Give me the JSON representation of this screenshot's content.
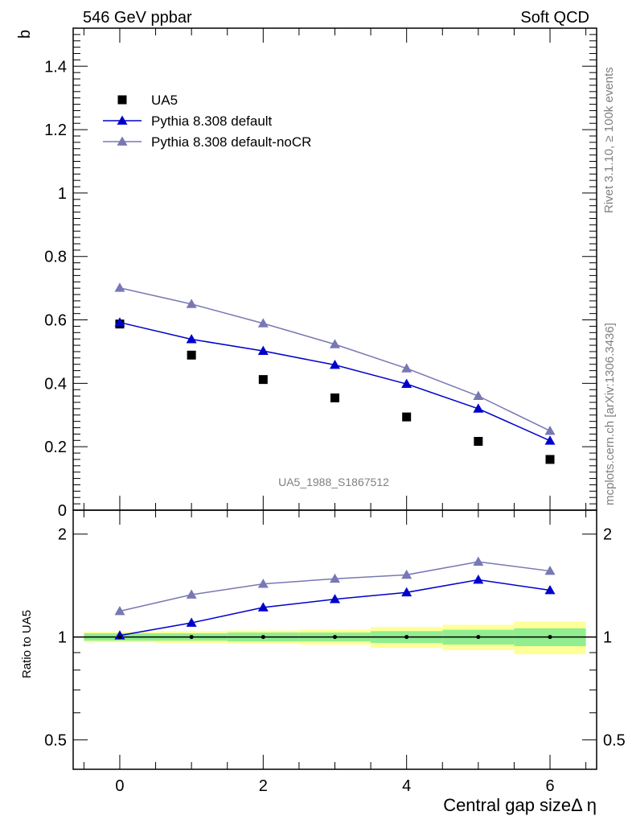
{
  "header": {
    "left": "546 GeV ppbar",
    "right": "Soft QCD"
  },
  "side_text": {
    "rivet": "Rivet 3.1.10, ≥ 100k events",
    "mcplots": "mcplots.cern.ch [arXiv:1306.3436]"
  },
  "analysis_id": "UA5_1988_S1867512",
  "chart_data": [
    {
      "type": "scatter",
      "panel": "main",
      "ylabel": "b",
      "ylim": [
        0,
        1.52
      ],
      "xlim": [
        -0.65,
        6.65
      ],
      "yticks": [
        0,
        0.2,
        0.4,
        0.6,
        0.8,
        1,
        1.2,
        1.4
      ],
      "ytick_labels": [
        "0",
        "0.2",
        "0.4",
        "0.6",
        "0.8",
        "1",
        "1.2",
        "1.4"
      ],
      "x": [
        0,
        1,
        2,
        3,
        4,
        5,
        6
      ],
      "legend_position": "top-left",
      "series": [
        {
          "name": "UA5",
          "marker": "square",
          "color": "#000000",
          "line": false,
          "values": [
            0.587,
            0.489,
            0.412,
            0.354,
            0.294,
            0.217,
            0.16
          ]
        },
        {
          "name": "Pythia 8.308 default",
          "marker": "triangle",
          "color": "#0000cc",
          "line": true,
          "values": [
            0.592,
            0.539,
            0.502,
            0.458,
            0.398,
            0.32,
            0.219
          ]
        },
        {
          "name": "Pythia 8.308 default-noCR",
          "marker": "triangle",
          "color": "#7878b4",
          "line": true,
          "values": [
            0.701,
            0.65,
            0.589,
            0.523,
            0.447,
            0.36,
            0.25
          ]
        }
      ]
    },
    {
      "type": "line",
      "panel": "ratio",
      "ylabel": "Ratio to UA5",
      "xlabel": "Central gap sizeΔ η",
      "ylim": [
        0.41,
        2.35
      ],
      "xlim": [
        -0.65,
        6.65
      ],
      "scale": "log",
      "yticks": [
        0.5,
        1,
        2
      ],
      "ytick_labels": [
        "0.5",
        "1",
        "2"
      ],
      "xticks": [
        0,
        2,
        4,
        6
      ],
      "xtick_labels": [
        "0",
        "2",
        "4",
        "6"
      ],
      "x": [
        0,
        1,
        2,
        3,
        4,
        5,
        6
      ],
      "reference_line": 1,
      "band_inner_halfwidth": [
        0.025,
        0.025,
        0.03,
        0.03,
        0.04,
        0.05,
        0.06
      ],
      "band_outer_halfwidth": [
        0.035,
        0.04,
        0.045,
        0.05,
        0.07,
        0.085,
        0.11
      ],
      "colors": {
        "inner_band": "#90ee90",
        "outer_band": "#ffff99"
      },
      "series": [
        {
          "name": "Pythia 8.308 default",
          "color": "#0000cc",
          "values": [
            1.01,
            1.1,
            1.22,
            1.29,
            1.35,
            1.47,
            1.37
          ]
        },
        {
          "name": "Pythia 8.308 default-noCR",
          "color": "#7878b4",
          "values": [
            1.19,
            1.33,
            1.43,
            1.48,
            1.52,
            1.66,
            1.56
          ]
        }
      ]
    }
  ]
}
